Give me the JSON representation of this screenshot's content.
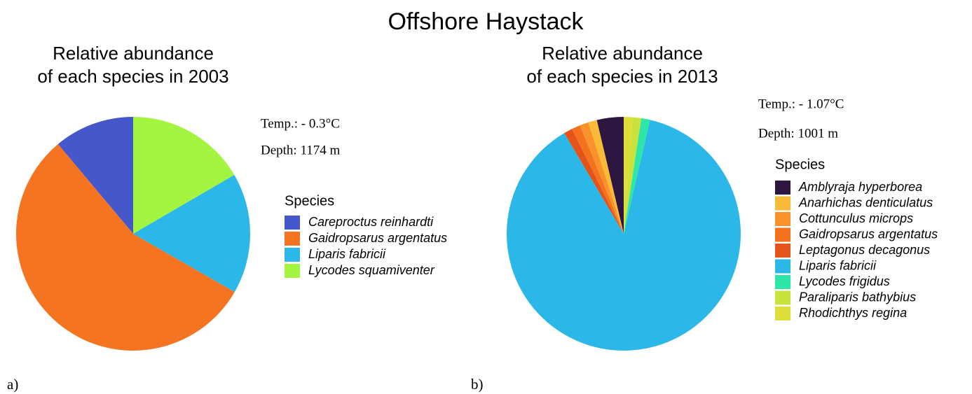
{
  "title": "Offshore Haystack",
  "chart_data": [
    {
      "type": "pie",
      "panel_label": "a)",
      "title": [
        "Relative abundance",
        "of each species in 2003"
      ],
      "annotations": [
        "Temp.: - 0.3°C",
        "Depth: 1174 m"
      ],
      "legend_title": "Species",
      "categories": [
        "Careproctus reinhardti",
        "Gaidropsarus argentatus",
        "Liparis fabricii",
        "Lycodes squamiventer"
      ],
      "values": [
        11.1,
        55.6,
        16.7,
        16.6
      ],
      "colors": [
        "#4657c9",
        "#f47421",
        "#2bb8e8",
        "#a3f542"
      ]
    },
    {
      "type": "pie",
      "panel_label": "b)",
      "title": [
        "Relative abundance",
        "of each species in 2013"
      ],
      "annotations": [
        "Temp.: - 1.07°C",
        "Depth: 1001 m"
      ],
      "legend_title": "Species",
      "categories": [
        "Amblyraja hyperborea",
        "Anarhichas denticulatus",
        "Cottunculus microps",
        "Gaidropsarus argentatus",
        "Leptagonus decagonus",
        "Liparis fabricii",
        "Lycodes frigidus",
        "Paraliparis bathybius",
        "Rhodichthys regina"
      ],
      "values": [
        3.7,
        1.2,
        1.2,
        1.2,
        1.2,
        87.9,
        1.2,
        1.2,
        1.2
      ],
      "colors": [
        "#2d1640",
        "#f9ba38",
        "#f9922b",
        "#f4721e",
        "#e4541a",
        "#2bb8e8",
        "#2ee6a8",
        "#c9e33c",
        "#dede3a"
      ]
    }
  ]
}
